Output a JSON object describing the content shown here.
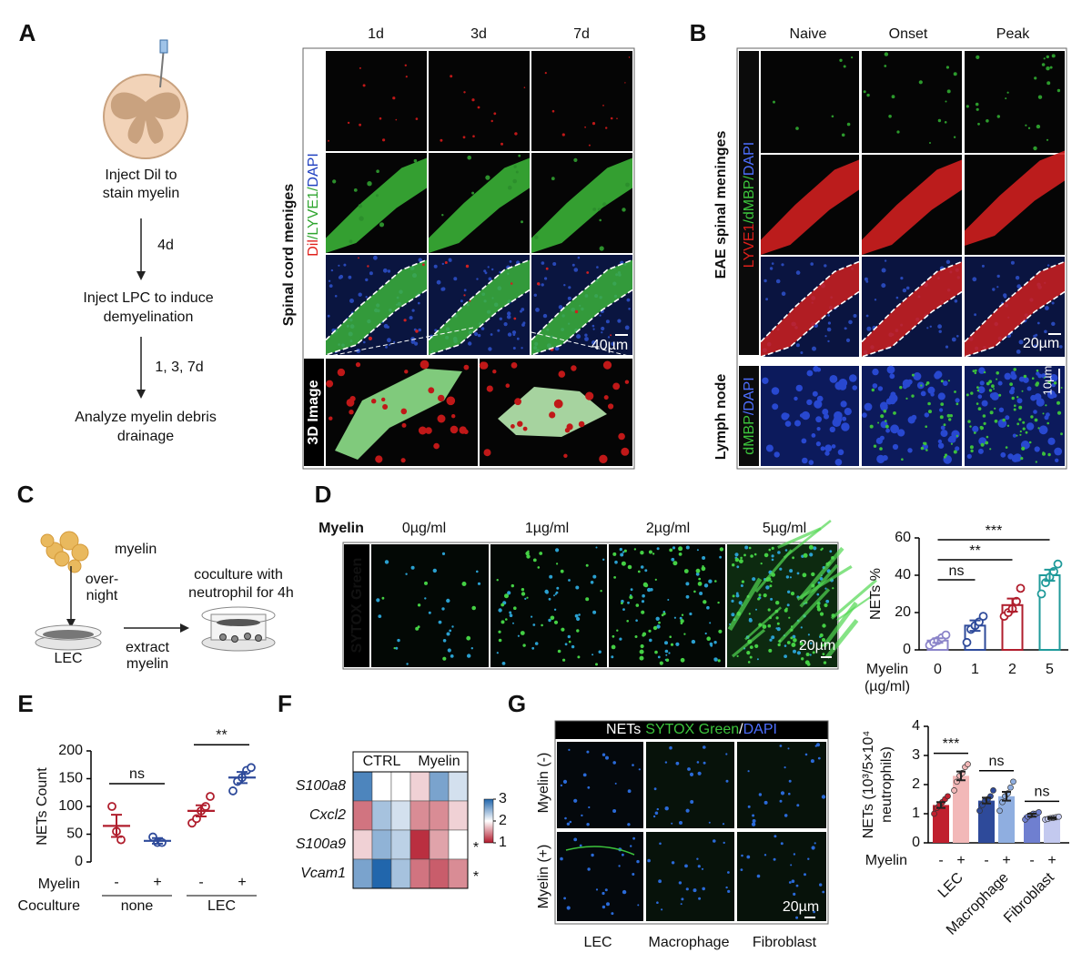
{
  "panel_labels": {
    "a": "A",
    "b": "B",
    "c": "C",
    "d": "D",
    "e": "E",
    "f": "F",
    "g": "G"
  },
  "panel_a": {
    "schematic": [
      "Inject Dil to",
      "stain myelin",
      "4d",
      "Inject LPC to induce",
      "demyelination",
      "1, 3, 7d",
      "Analyze myelin debris",
      "drainage"
    ],
    "columns": [
      "1d",
      "3d",
      "7d"
    ],
    "row_title": "Spinal cord meniges",
    "stain": [
      "Dil",
      "/LYVE1/",
      "DAPI"
    ],
    "row_3d": "3D Image",
    "scale_bar": "40µm"
  },
  "panel_b": {
    "columns": [
      "Naive",
      "Onset",
      "Peak"
    ],
    "row_title": "EAE spinal meninges",
    "stain": [
      "LYVE1",
      "/dMBP/",
      "DAPI"
    ],
    "scale_bar": "20µm",
    "lymph_title": "Lymph node",
    "lymph_stain": [
      "dMBP",
      "/DAPI"
    ],
    "lymph_scale_bar": "10µm"
  },
  "panel_c": {
    "texts": [
      "myelin",
      "over-",
      "night",
      "LEC",
      "extract",
      "myelin",
      "coculture with",
      "neutrophil for 4h"
    ]
  },
  "panel_d": {
    "row_header": "Myelin",
    "columns": [
      "0µg/ml",
      "1µg/ml",
      "2µg/ml",
      "5µg/ml"
    ],
    "stain": "SYTOX Green",
    "scale_bar": "20µm"
  },
  "panel_g": {
    "header": [
      "NETs",
      "SYTOX Green",
      "/",
      "DAPI"
    ],
    "rows": [
      "Myelin (-)",
      "Myelin (+)"
    ],
    "columns": [
      "LEC",
      "Macrophage",
      "Fibroblast"
    ],
    "scale_bar": "20µm"
  },
  "chart_data": [
    {
      "type": "bar",
      "ylabel": "NETs %",
      "xlabel": [
        "Myelin",
        "(µg/ml)"
      ],
      "categories": [
        "0",
        "1",
        "2",
        "5"
      ],
      "values": [
        5,
        13,
        24,
        40
      ],
      "errors": [
        1.2,
        2.8,
        3.5,
        3
      ],
      "points": [
        [
          2.5,
          4,
          5,
          6.5,
          8
        ],
        [
          4,
          11,
          13,
          15,
          18
        ],
        [
          18,
          20,
          22,
          26,
          33
        ],
        [
          30,
          36,
          39,
          42,
          46
        ]
      ],
      "colors": [
        "#8b84c9",
        "#2e4a9a",
        "#b01e2d",
        "#1f9a9a"
      ],
      "ylim": [
        0,
        60
      ],
      "yticks": [
        0,
        20,
        40,
        60
      ],
      "significance": [
        {
          "label": "ns",
          "from": 0,
          "to": 1
        },
        {
          "label": "**",
          "from": 0,
          "to": 2
        },
        {
          "label": "***",
          "from": 0,
          "to": 3
        }
      ]
    },
    {
      "type": "dot",
      "ylabel": "NETs Count",
      "xlabel": "Myelin",
      "categories": [
        "-",
        "+",
        "-",
        "+"
      ],
      "group_label": "Coculture",
      "groups": [
        {
          "name": "none",
          "from": 0,
          "to": 1
        },
        {
          "name": "LEC",
          "from": 2,
          "to": 3
        }
      ],
      "values": [
        65,
        38,
        92,
        152
      ],
      "errors": [
        20,
        5,
        10,
        10
      ],
      "points": [
        [
          100,
          55,
          40
        ],
        [
          45,
          35,
          35
        ],
        [
          70,
          78,
          92,
          100,
          118
        ],
        [
          128,
          145,
          152,
          165,
          170
        ]
      ],
      "colors": [
        "#b01e2d",
        "#2e4a9a",
        "#b01e2d",
        "#2e4a9a"
      ],
      "ylim": [
        0,
        200
      ],
      "yticks": [
        0,
        50,
        100,
        150,
        200
      ],
      "significance": [
        {
          "label": "ns",
          "from": 0,
          "to": 1
        },
        {
          "label": "**",
          "from": 2,
          "to": 3
        }
      ]
    },
    {
      "type": "heatmap",
      "rows": [
        "S100a8",
        "Cxcl2",
        "S100a9",
        "Vcam1"
      ],
      "column_groups": [
        {
          "name": "CTRL",
          "count": 3
        },
        {
          "name": "Myelin",
          "count": 3
        }
      ],
      "values": [
        [
          2.8,
          2.0,
          2.0,
          1.8,
          2.6,
          2.2
        ],
        [
          1.4,
          2.4,
          2.2,
          1.5,
          1.5,
          1.8
        ],
        [
          1.8,
          2.5,
          2.3,
          1.1,
          1.6,
          2.0
        ],
        [
          2.6,
          3.0,
          2.4,
          1.4,
          1.3,
          1.5
        ]
      ],
      "annotations": [
        null,
        null,
        "*",
        "*"
      ],
      "clim": [
        1,
        3
      ],
      "cticks": [
        1,
        2,
        3
      ],
      "colormap": [
        "#b2182b",
        "#ffffff",
        "#2166ac"
      ]
    },
    {
      "type": "grouped_bar",
      "ylabel": [
        "NETs (10³/5×10⁴",
        "neutrophils)"
      ],
      "xlabel": "Myelin",
      "categories": [
        "LEC",
        "Macrophage",
        "Fibroblast"
      ],
      "series": [
        {
          "name": "-",
          "colors": [
            "#c0202f",
            "#2e4a9a",
            "#6f7fd0"
          ],
          "values": [
            1.3,
            1.45,
            0.95
          ],
          "errors": [
            0.1,
            0.1,
            0.05
          ],
          "points": [
            [
              1.0,
              1.2,
              1.3,
              1.4,
              1.5,
              1.6
            ],
            [
              1.1,
              1.3,
              1.45,
              1.5,
              1.6,
              1.8
            ],
            [
              0.8,
              0.9,
              0.95,
              1.0,
              1.0,
              1.05
            ]
          ]
        },
        {
          "name": "+",
          "colors": [
            "#f2b8b8",
            "#8faee0",
            "#c3c9ef"
          ],
          "values": [
            2.3,
            1.6,
            0.85
          ],
          "errors": [
            0.15,
            0.15,
            0.03
          ],
          "points": [
            [
              1.8,
              2.1,
              2.3,
              2.4,
              2.6,
              2.7
            ],
            [
              1.1,
              1.4,
              1.6,
              1.7,
              1.9,
              2.1
            ],
            [
              0.8,
              0.82,
              0.85,
              0.86,
              0.88,
              0.9
            ]
          ]
        }
      ],
      "ylim": [
        0,
        4
      ],
      "yticks": [
        0,
        1,
        2,
        3,
        4
      ],
      "significance": [
        {
          "label": "***",
          "category": 0
        },
        {
          "label": "ns",
          "category": 1
        },
        {
          "label": "ns",
          "category": 2
        }
      ]
    }
  ]
}
